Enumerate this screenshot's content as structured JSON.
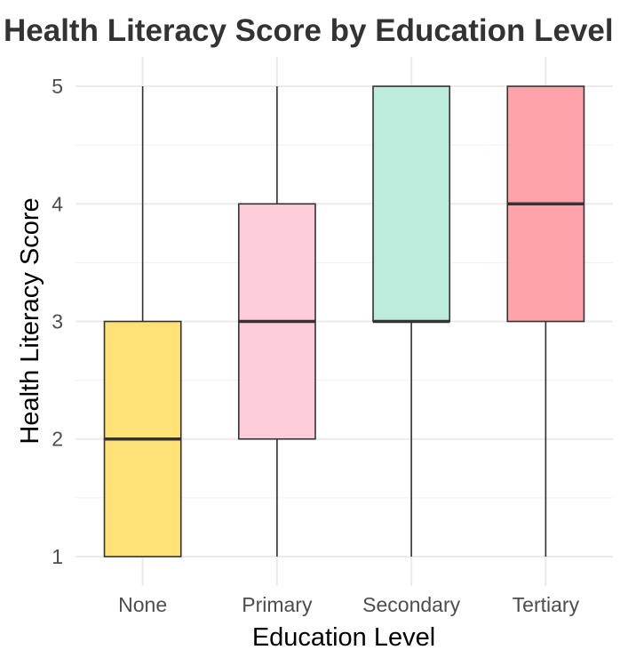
{
  "chart_data": {
    "type": "boxplot",
    "title": "Health Literacy Score by Education Level",
    "xlabel": "Education Level",
    "ylabel": "Health Literacy Score",
    "categories": [
      "None",
      "Primary",
      "Secondary",
      "Tertiary"
    ],
    "yticks": [
      "1",
      "2",
      "3",
      "4",
      "5"
    ],
    "ylim": [
      0.75,
      5.25
    ],
    "grid": true,
    "boxes": [
      {
        "category": "None",
        "min": 1,
        "q1": 1,
        "median": 2,
        "q3": 3,
        "max": 5,
        "color": "#FFE175"
      },
      {
        "category": "Primary",
        "min": 1,
        "q1": 2,
        "median": 3,
        "q3": 4,
        "max": 5,
        "color": "#FFCCDA"
      },
      {
        "category": "Secondary",
        "min": 1,
        "q1": 3,
        "median": 3,
        "q3": 5,
        "max": 5,
        "color": "#BDEBDC"
      },
      {
        "category": "Tertiary",
        "min": 1,
        "q1": 3,
        "median": 4,
        "q3": 5,
        "max": 5,
        "color": "#FFA2AA"
      }
    ]
  }
}
